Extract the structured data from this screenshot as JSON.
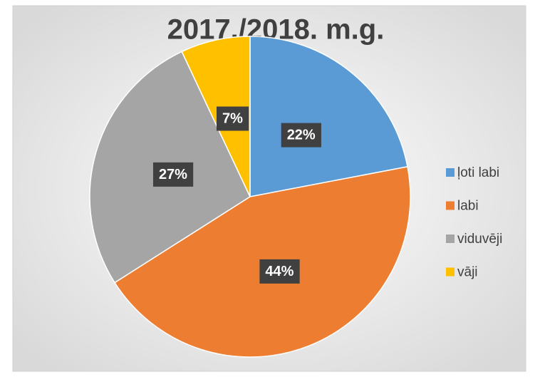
{
  "chart_data": {
    "type": "pie",
    "title": "2017./2018. m.g.",
    "categories": [
      "ļoti labi",
      "labi",
      "viduvēji",
      "vāji"
    ],
    "values": [
      22,
      44,
      27,
      7
    ],
    "value_labels": [
      "22%",
      "44%",
      "27%",
      "7%"
    ],
    "colors": [
      "#5b9bd5",
      "#ed7d31",
      "#a5a5a5",
      "#ffc000"
    ],
    "legend": "right"
  }
}
